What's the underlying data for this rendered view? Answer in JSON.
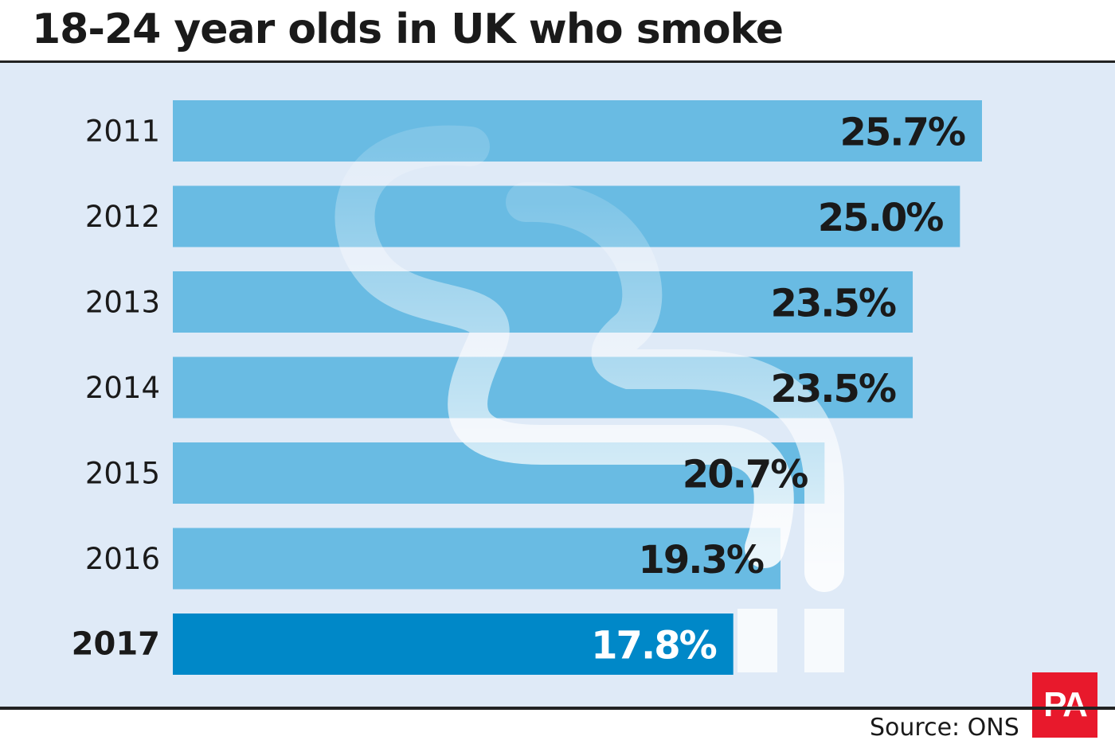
{
  "title": "18-24 year olds in UK who smoke",
  "source": "Source: ONS",
  "logo_text": "PA",
  "colors": {
    "bar": "#69bbe3",
    "bar_highlight": "#0088c8",
    "panel": "#dfeaf7",
    "label_dark": "#1a1a1a",
    "label_light": "#ffffff",
    "logo": "#e8192c"
  },
  "chart_data": {
    "type": "bar",
    "orientation": "horizontal",
    "categories": [
      "2011",
      "2012",
      "2013",
      "2014",
      "2015",
      "2016",
      "2017"
    ],
    "values": [
      25.7,
      25.0,
      23.5,
      23.5,
      20.7,
      19.3,
      17.8
    ],
    "value_labels": [
      "25.7%",
      "25.0%",
      "23.5%",
      "23.5%",
      "20.7%",
      "19.3%",
      "17.8%"
    ],
    "highlight": "2017",
    "unit": "%",
    "xlim": [
      0,
      25.7
    ],
    "grid": false,
    "legend": "none"
  }
}
